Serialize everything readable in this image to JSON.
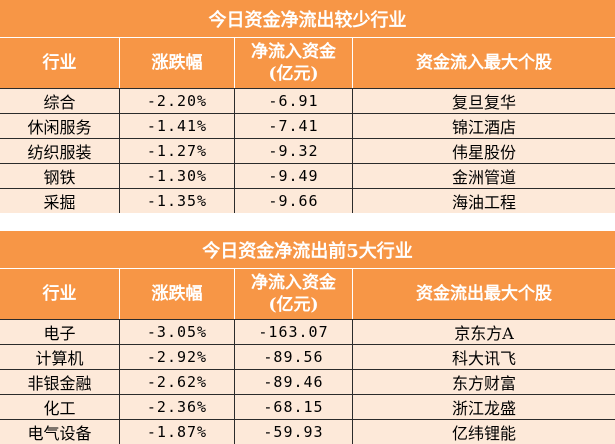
{
  "colors": {
    "header": "#f79646",
    "row": "#fde9d9",
    "text_header": "#ffffff"
  },
  "table_outflow_small": {
    "title": "今日资金净流出较少行业",
    "headers": [
      "行业",
      "涨跌幅",
      "净流入资金\n(亿元)",
      "资金流入最大个股"
    ],
    "rows": [
      [
        "综合",
        "-2.20%",
        "-6.91",
        "复旦复华"
      ],
      [
        "休闲服务",
        "-1.41%",
        "-7.41",
        "锦江酒店"
      ],
      [
        "纺织服装",
        "-1.27%",
        "-9.32",
        "伟星股份"
      ],
      [
        "钢铁",
        "-1.30%",
        "-9.49",
        "金洲管道"
      ],
      [
        "采掘",
        "-1.35%",
        "-9.66",
        "海油工程"
      ]
    ]
  },
  "table_outflow_top5": {
    "title": "今日资金净流出前5大行业",
    "headers": [
      "行业",
      "涨跌幅",
      "净流入资金\n(亿元)",
      "资金流出最大个股"
    ],
    "rows": [
      [
        "电子",
        "-3.05%",
        "-163.07",
        "京东方A"
      ],
      [
        "计算机",
        "-2.92%",
        "-89.56",
        "科大讯飞"
      ],
      [
        "非银金融",
        "-2.62%",
        "-89.46",
        "东方财富"
      ],
      [
        "化工",
        "-2.36%",
        "-68.15",
        "浙江龙盛"
      ],
      [
        "电气设备",
        "-1.87%",
        "-59.93",
        "亿纬锂能"
      ]
    ]
  }
}
